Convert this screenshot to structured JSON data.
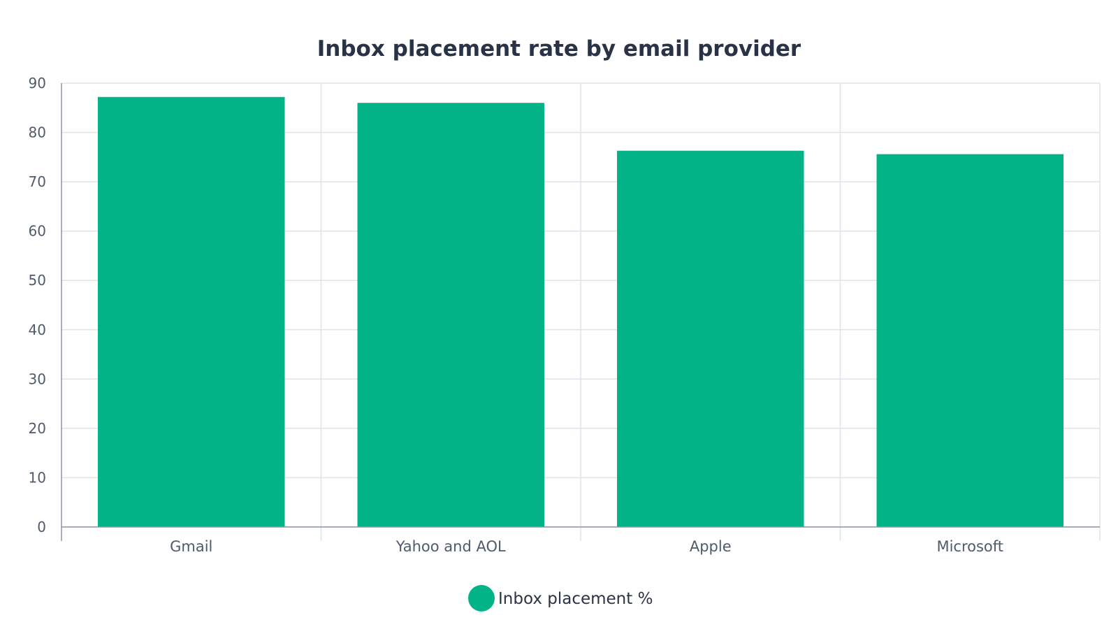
{
  "chart_data": {
    "type": "bar",
    "title": "Inbox placement rate by email provider",
    "categories": [
      "Gmail",
      "Yahoo and AOL",
      "Apple",
      "Microsoft"
    ],
    "series": [
      {
        "name": "Inbox placement %",
        "values": [
          87.2,
          86.0,
          76.3,
          75.6
        ],
        "color": "#02b388"
      }
    ],
    "ylim": [
      0,
      90
    ],
    "yticks": [
      0,
      10,
      20,
      30,
      40,
      50,
      60,
      70,
      80,
      90
    ],
    "grid": true,
    "legend_position": "bottom-center",
    "colors": {
      "bar": "#02b388",
      "grid": "#dfe3ea",
      "text": "#2a3345",
      "tick": "#505a6b"
    }
  }
}
